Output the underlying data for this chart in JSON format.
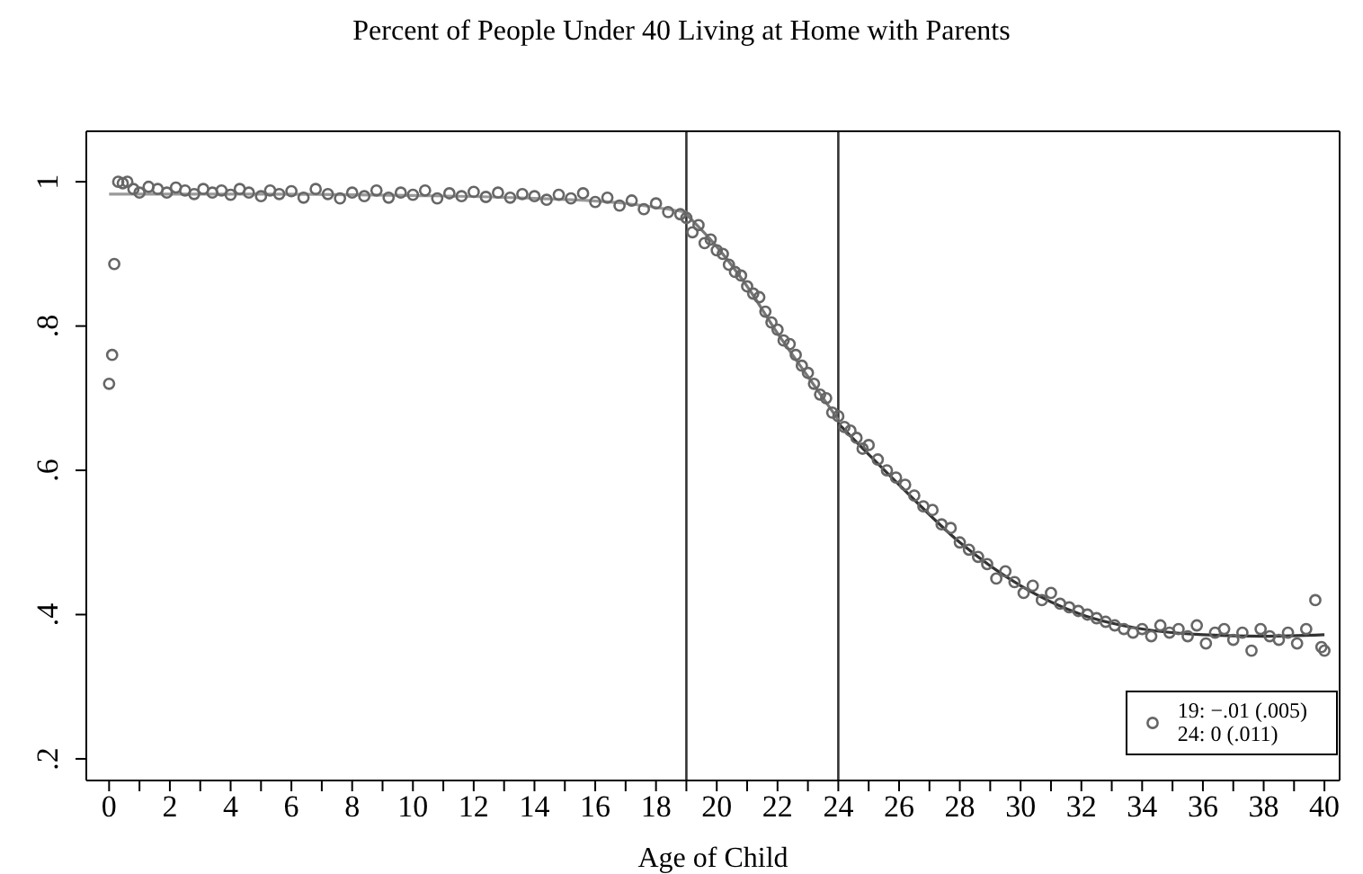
{
  "chart_data": {
    "type": "scatter",
    "title": "Percent of People Under 40 Living at Home with Parents",
    "xlabel": "Age of Child",
    "xlim": [
      -0.75,
      40.5
    ],
    "ylim": [
      0.17,
      1.07
    ],
    "xticks": [
      0,
      {
        "value": 1,
        "label": null
      },
      2,
      {
        "value": 3,
        "label": null
      },
      4,
      {
        "value": 5,
        "label": null
      },
      6,
      {
        "value": 7,
        "label": null
      },
      8,
      {
        "value": 9,
        "label": null
      },
      10,
      {
        "value": 11,
        "label": null
      },
      12,
      {
        "value": 13,
        "label": null
      },
      14,
      {
        "value": 15,
        "label": null
      },
      16,
      {
        "value": 17,
        "label": null
      },
      18,
      {
        "value": 19,
        "label": null
      },
      20,
      {
        "value": 21,
        "label": null
      },
      22,
      {
        "value": 23,
        "label": null
      },
      24,
      {
        "value": 25,
        "label": null
      },
      26,
      {
        "value": 27,
        "label": null
      },
      28,
      {
        "value": 29,
        "label": null
      },
      30,
      {
        "value": 31,
        "label": null
      },
      32,
      {
        "value": 33,
        "label": null
      },
      34,
      {
        "value": 35,
        "label": null
      },
      36,
      {
        "value": 37,
        "label": null
      },
      38,
      {
        "value": 39,
        "label": null
      },
      40
    ],
    "yticks": [
      {
        "value": 0.2,
        "label": ".2"
      },
      {
        "value": 0.4,
        "label": ".4"
      },
      {
        "value": 0.6,
        "label": ".6"
      },
      {
        "value": 0.8,
        "label": ".8"
      },
      1
    ],
    "legend": "bottom right",
    "ref_lines": [
      {
        "axis": "x",
        "value": 19,
        "color": "#333333"
      },
      {
        "axis": "x",
        "value": 24,
        "color": "#333333"
      }
    ],
    "series": [
      {
        "name": "19: −.01 (.005)\n24: 0 (.011)",
        "color": "#666666",
        "marker": "circle",
        "x": [
          0,
          0.1,
          0.17,
          0.3,
          0.45,
          0.6,
          0.8,
          1.0,
          1.3,
          1.6,
          1.9,
          2.2,
          2.5,
          2.8,
          3.1,
          3.4,
          3.7,
          4.0,
          4.3,
          4.6,
          5.0,
          5.3,
          5.6,
          6.0,
          6.4,
          6.8,
          7.2,
          7.6,
          8.0,
          8.4,
          8.8,
          9.2,
          9.6,
          10.0,
          10.4,
          10.8,
          11.2,
          11.6,
          12.0,
          12.4,
          12.8,
          13.2,
          13.6,
          14.0,
          14.4,
          14.8,
          15.2,
          15.6,
          16.0,
          16.4,
          16.8,
          17.2,
          17.6,
          18.0,
          18.4,
          18.8,
          19.0,
          19.2,
          19.4,
          19.6,
          19.8,
          20.0,
          20.2,
          20.4,
          20.6,
          20.8,
          21.0,
          21.2,
          21.4,
          21.6,
          21.8,
          22.0,
          22.2,
          22.4,
          22.6,
          22.8,
          23.0,
          23.2,
          23.4,
          23.6,
          23.8,
          24.0,
          24.2,
          24.4,
          24.6,
          24.8,
          25.0,
          25.3,
          25.6,
          25.9,
          26.2,
          26.5,
          26.8,
          27.1,
          27.4,
          27.7,
          28.0,
          28.3,
          28.6,
          28.9,
          29.2,
          29.5,
          29.8,
          30.1,
          30.4,
          30.7,
          31.0,
          31.3,
          31.6,
          31.9,
          32.2,
          32.5,
          32.8,
          33.1,
          33.4,
          33.7,
          34.0,
          34.3,
          34.6,
          34.9,
          35.2,
          35.5,
          35.8,
          36.1,
          36.4,
          36.7,
          37.0,
          37.3,
          37.6,
          37.9,
          38.2,
          38.5,
          38.8,
          39.1,
          39.4,
          39.7,
          39.9,
          40.0
        ],
        "values": [
          0.72,
          0.76,
          0.886,
          1.0,
          0.998,
          1.0,
          0.99,
          0.985,
          0.993,
          0.99,
          0.985,
          0.992,
          0.988,
          0.983,
          0.99,
          0.985,
          0.988,
          0.982,
          0.99,
          0.985,
          0.98,
          0.988,
          0.983,
          0.987,
          0.978,
          0.99,
          0.983,
          0.977,
          0.985,
          0.98,
          0.988,
          0.978,
          0.985,
          0.982,
          0.988,
          0.977,
          0.984,
          0.98,
          0.986,
          0.979,
          0.985,
          0.978,
          0.983,
          0.98,
          0.975,
          0.982,
          0.977,
          0.984,
          0.972,
          0.978,
          0.967,
          0.974,
          0.962,
          0.97,
          0.958,
          0.955,
          0.95,
          0.93,
          0.94,
          0.915,
          0.92,
          0.905,
          0.9,
          0.885,
          0.875,
          0.87,
          0.855,
          0.845,
          0.84,
          0.82,
          0.805,
          0.795,
          0.78,
          0.775,
          0.76,
          0.745,
          0.735,
          0.72,
          0.705,
          0.7,
          0.68,
          0.675,
          0.66,
          0.655,
          0.645,
          0.63,
          0.635,
          0.615,
          0.6,
          0.59,
          0.58,
          0.565,
          0.55,
          0.545,
          0.525,
          0.52,
          0.5,
          0.49,
          0.48,
          0.47,
          0.45,
          0.46,
          0.445,
          0.43,
          0.44,
          0.42,
          0.43,
          0.415,
          0.41,
          0.405,
          0.4,
          0.395,
          0.39,
          0.385,
          0.38,
          0.375,
          0.38,
          0.37,
          0.385,
          0.375,
          0.38,
          0.37,
          0.385,
          0.36,
          0.375,
          0.38,
          0.365,
          0.375,
          0.35,
          0.38,
          0.37,
          0.365,
          0.375,
          0.36,
          0.38,
          0.42,
          0.355,
          0.35
        ]
      },
      {
        "type": "line",
        "color": "#999999",
        "marker": "none",
        "line_style": "solid",
        "x": [
          0,
          5,
          10,
          14,
          17,
          19
        ],
        "values": [
          0.983,
          0.983,
          0.981,
          0.977,
          0.97,
          0.958
        ]
      },
      {
        "type": "line",
        "color": "#777777",
        "marker": "none",
        "line_style": "solid",
        "x": [
          19,
          20,
          21,
          22,
          23,
          24
        ],
        "values": [
          0.955,
          0.91,
          0.855,
          0.79,
          0.73,
          0.67
        ]
      },
      {
        "type": "line",
        "color": "#333333",
        "marker": "none",
        "line_style": "solid",
        "x": [
          24,
          26,
          28,
          30,
          32,
          34,
          36,
          38,
          40
        ],
        "values": [
          0.665,
          0.58,
          0.5,
          0.44,
          0.4,
          0.38,
          0.372,
          0.37,
          0.372
        ]
      }
    ]
  }
}
